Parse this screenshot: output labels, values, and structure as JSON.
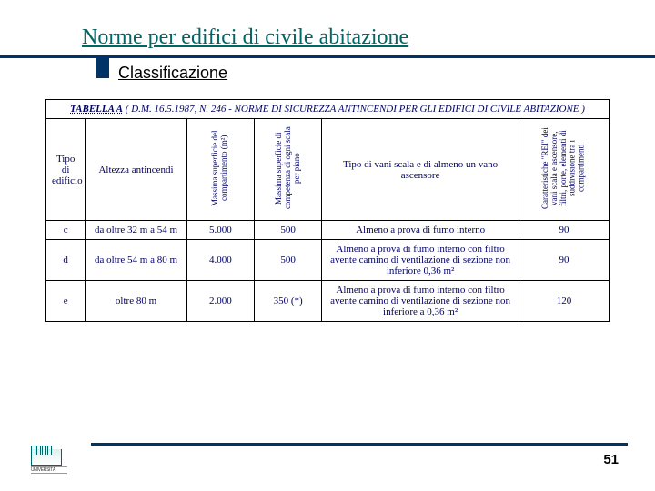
{
  "title": "Norme per edifici di civile abitazione",
  "subtitle": "Classificazione",
  "table": {
    "label": "TABELLA  A",
    "caption": "( D.M.  16.5.1987,  N.  246  -  NORME DI SICUREZZA ANTINCENDI PER GLI EDIFICI DI CIVILE ABITAZIONE )",
    "headers": {
      "c0": "Tipo di edificio",
      "c1": "Altezza antincendi",
      "c2": "Massima superficie del compartimento (m²)",
      "c3": "Massima superficie di competenza di ogni scala per piano",
      "c4": "Tipo di vani scala e di almeno un vano ascensore",
      "c5": "Caratteristiche \"REI\" dei vani scala e ascensore, filtri, porte, elementi di suddivisione tra i compartimenti"
    },
    "rows": [
      {
        "c0": "c",
        "c1": "da oltre 32 m a 54 m",
        "c2": "5.000",
        "c3": "500",
        "c4": "Almeno a prova di fumo interno",
        "c5": "90"
      },
      {
        "c0": "d",
        "c1": "da oltre 54 m a 80 m",
        "c2": "4.000",
        "c3": "500",
        "c4": "Almeno a prova di fumo interno con filtro avente camino di ventilazione di sezione non inferiore 0,36 m²",
        "c5": "90"
      },
      {
        "c0": "e",
        "c1": "oltre 80 m",
        "c2": "2.000",
        "c3": "350 (*)",
        "c4": "Almeno a prova di fumo interno con filtro avente camino di ventilazione di sezione non inferiore a 0,36 m²",
        "c5": "120"
      }
    ]
  },
  "page_number": "51",
  "logo_text": "UNIVERSITÀ"
}
